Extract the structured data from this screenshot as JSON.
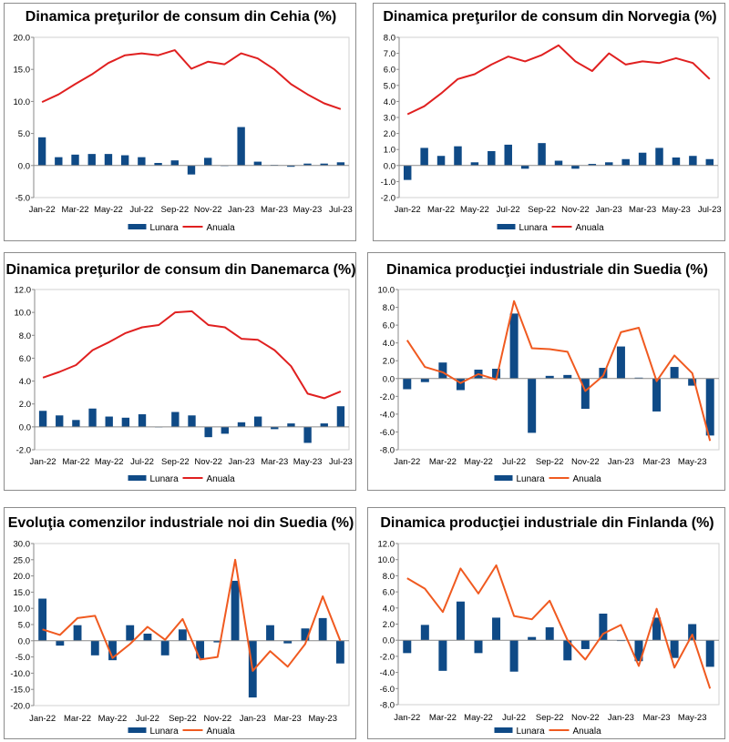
{
  "chart_data": [
    {
      "type": "bar+line",
      "title": "Dinamica preţurilor de consum din Cehia (%)",
      "categories": [
        "Jan-22",
        "Feb-22",
        "Mar-22",
        "Apr-22",
        "May-22",
        "Jun-22",
        "Jul-22",
        "Aug-22",
        "Sep-22",
        "Oct-22",
        "Nov-22",
        "Dec-22",
        "Jan-23",
        "Feb-23",
        "Mar-23",
        "Apr-23",
        "May-23",
        "Jun-23",
        "Jul-23"
      ],
      "x_tick_labels": [
        "Jan-22",
        "Mar-22",
        "May-22",
        "Jul-22",
        "Sep-22",
        "Nov-22",
        "Jan-23",
        "Mar-23",
        "May-23",
        "Jul-23"
      ],
      "ylim": [
        -5,
        20
      ],
      "yticks": [
        -5,
        0,
        5,
        10,
        15,
        20
      ],
      "ytick_labels": [
        "-5.0",
        "0.0",
        "5.0",
        "10.0",
        "15.0",
        "20.0"
      ],
      "series": [
        {
          "name": "Lunara",
          "kind": "bar",
          "color": "#0f4a86",
          "values": [
            4.4,
            1.3,
            1.7,
            1.8,
            1.8,
            1.6,
            1.3,
            0.4,
            0.8,
            -1.4,
            1.2,
            0.0,
            6.0,
            0.6,
            0.1,
            -0.2,
            0.3,
            0.3,
            0.5
          ]
        },
        {
          "name": "Anuala",
          "kind": "line",
          "color": "#e02020",
          "values": [
            9.9,
            11.1,
            12.7,
            14.2,
            16.0,
            17.2,
            17.5,
            17.2,
            18.0,
            15.1,
            16.2,
            15.8,
            17.5,
            16.7,
            15.0,
            12.7,
            11.1,
            9.7,
            8.8
          ]
        }
      ],
      "legend": "bottom",
      "grid": false
    },
    {
      "type": "bar+line",
      "title": "Dinamica preţurilor de consum din Norvegia (%)",
      "categories": [
        "Jan-22",
        "Feb-22",
        "Mar-22",
        "Apr-22",
        "May-22",
        "Jun-22",
        "Jul-22",
        "Aug-22",
        "Sep-22",
        "Oct-22",
        "Nov-22",
        "Dec-22",
        "Jan-23",
        "Feb-23",
        "Mar-23",
        "Apr-23",
        "May-23",
        "Jun-23",
        "Jul-23"
      ],
      "x_tick_labels": [
        "Jan-22",
        "Mar-22",
        "May-22",
        "Jul-22",
        "Sep-22",
        "Nov-22",
        "Jan-23",
        "Mar-23",
        "May-23",
        "Jul-23"
      ],
      "ylim": [
        -2,
        8
      ],
      "yticks": [
        -2,
        -1,
        0,
        1,
        2,
        3,
        4,
        5,
        6,
        7,
        8
      ],
      "ytick_labels": [
        "-2.0",
        "-1.0",
        "0.0",
        "1.0",
        "2.0",
        "3.0",
        "4.0",
        "5.0",
        "6.0",
        "7.0",
        "8.0"
      ],
      "series": [
        {
          "name": "Lunara",
          "kind": "bar",
          "color": "#0f4a86",
          "values": [
            -0.9,
            1.1,
            0.6,
            1.2,
            0.2,
            0.9,
            1.3,
            -0.2,
            1.4,
            0.3,
            -0.2,
            0.1,
            0.2,
            0.4,
            0.8,
            1.1,
            0.5,
            0.6,
            0.4
          ]
        },
        {
          "name": "Anuala",
          "kind": "line",
          "color": "#e02020",
          "values": [
            3.2,
            3.7,
            4.5,
            5.4,
            5.7,
            6.3,
            6.8,
            6.5,
            6.9,
            7.5,
            6.5,
            5.9,
            7.0,
            6.3,
            6.5,
            6.4,
            6.7,
            6.4,
            5.4
          ]
        }
      ],
      "legend": "bottom",
      "grid": false
    },
    {
      "type": "bar+line",
      "title": "Dinamica preţurilor de consum din Danemarca (%)",
      "categories": [
        "Jan-22",
        "Feb-22",
        "Mar-22",
        "Apr-22",
        "May-22",
        "Jun-22",
        "Jul-22",
        "Aug-22",
        "Sep-22",
        "Oct-22",
        "Nov-22",
        "Dec-22",
        "Jan-23",
        "Feb-23",
        "Mar-23",
        "Apr-23",
        "May-23",
        "Jun-23",
        "Jul-23"
      ],
      "x_tick_labels": [
        "Jan-22",
        "Mar-22",
        "May-22",
        "Jul-22",
        "Sep-22",
        "Nov-22",
        "Jan-23",
        "Mar-23",
        "May-23",
        "Jul-23"
      ],
      "ylim": [
        -2,
        12
      ],
      "yticks": [
        -2,
        0,
        2,
        4,
        6,
        8,
        10,
        12
      ],
      "ytick_labels": [
        "-2.0",
        "0.0",
        "2.0",
        "4.0",
        "6.0",
        "8.0",
        "10.0",
        "12.0"
      ],
      "series": [
        {
          "name": "Lunara",
          "kind": "bar",
          "color": "#0f4a86",
          "values": [
            1.4,
            1.0,
            0.6,
            1.6,
            0.9,
            0.8,
            1.1,
            0.0,
            1.3,
            1.0,
            -0.9,
            -0.6,
            0.4,
            0.9,
            -0.2,
            0.3,
            -1.4,
            0.3,
            1.8
          ]
        },
        {
          "name": "Anuala",
          "kind": "line",
          "color": "#e02020",
          "values": [
            4.3,
            4.8,
            5.4,
            6.7,
            7.4,
            8.2,
            8.7,
            8.9,
            10.0,
            10.1,
            8.9,
            8.7,
            7.7,
            7.6,
            6.7,
            5.3,
            2.9,
            2.5,
            3.1
          ]
        }
      ],
      "legend": "bottom",
      "grid": false
    },
    {
      "type": "bar+line",
      "title": "Dinamica producţiei industriale din Suedia (%)",
      "categories": [
        "Jan-22",
        "Feb-22",
        "Mar-22",
        "Apr-22",
        "May-22",
        "Jun-22",
        "Jul-22",
        "Aug-22",
        "Sep-22",
        "Oct-22",
        "Nov-22",
        "Dec-22",
        "Jan-23",
        "Feb-23",
        "Mar-23",
        "Apr-23",
        "May-23",
        "Jun-23"
      ],
      "x_tick_labels": [
        "Jan-22",
        "Mar-22",
        "May-22",
        "Jul-22",
        "Sep-22",
        "Nov-22",
        "Jan-23",
        "Mar-23",
        "May-23"
      ],
      "ylim": [
        -8,
        10
      ],
      "yticks": [
        -8,
        -6,
        -4,
        -2,
        0,
        2,
        4,
        6,
        8,
        10
      ],
      "ytick_labels": [
        "-8.0",
        "-6.0",
        "-4.0",
        "-2.0",
        "0.0",
        "2.0",
        "4.0",
        "6.0",
        "8.0",
        "10.0"
      ],
      "series": [
        {
          "name": "Lunara",
          "kind": "bar",
          "color": "#0f4a86",
          "values": [
            -1.2,
            -0.4,
            1.8,
            -1.3,
            1.0,
            1.1,
            7.3,
            -6.1,
            0.3,
            0.4,
            -3.4,
            1.2,
            3.6,
            0.1,
            -3.7,
            1.3,
            -0.8,
            -6.4
          ]
        },
        {
          "name": "Anuala",
          "kind": "line",
          "color": "#f05a20",
          "values": [
            4.3,
            1.3,
            0.7,
            -0.5,
            0.5,
            -0.1,
            8.7,
            3.4,
            3.3,
            3.0,
            -1.4,
            0.3,
            5.2,
            5.7,
            -0.3,
            2.6,
            0.6,
            -7.0
          ]
        }
      ],
      "legend": "bottom",
      "grid": false
    },
    {
      "type": "bar+line",
      "title": "Evoluţia comenzilor industriale noi din Suedia (%)",
      "categories": [
        "Jan-22",
        "Feb-22",
        "Mar-22",
        "Apr-22",
        "May-22",
        "Jun-22",
        "Jul-22",
        "Aug-22",
        "Sep-22",
        "Oct-22",
        "Nov-22",
        "Dec-22",
        "Jan-23",
        "Feb-23",
        "Mar-23",
        "Apr-23",
        "May-23",
        "Jun-23"
      ],
      "x_tick_labels": [
        "Jan-22",
        "Mar-22",
        "May-22",
        "Jul-22",
        "Sep-22",
        "Nov-22",
        "Jan-23",
        "Mar-23",
        "May-23"
      ],
      "ylim": [
        -20,
        30
      ],
      "yticks": [
        -20,
        -15,
        -10,
        -5,
        0,
        5,
        10,
        15,
        20,
        25,
        30
      ],
      "ytick_labels": [
        "-20.0",
        "-15.0",
        "-10.0",
        "-5.0",
        "0.0",
        "5.0",
        "10.0",
        "15.0",
        "20.0",
        "25.0",
        "30.0"
      ],
      "series": [
        {
          "name": "Lunara",
          "kind": "bar",
          "color": "#0f4a86",
          "values": [
            13.0,
            -1.5,
            4.8,
            -4.5,
            -6.0,
            4.8,
            2.2,
            -4.5,
            3.5,
            -5.5,
            -0.5,
            18.5,
            -17.5,
            4.8,
            -0.8,
            3.8,
            7.0,
            -7.0
          ]
        },
        {
          "name": "Anuala",
          "kind": "line",
          "color": "#f05a20",
          "values": [
            3.5,
            1.8,
            7.0,
            7.7,
            -5.3,
            -1.0,
            4.3,
            0.3,
            6.7,
            -5.8,
            -5.0,
            25.0,
            -9.3,
            -3.2,
            -8.0,
            -1.0,
            13.7,
            0.0
          ]
        }
      ],
      "legend": "bottom",
      "grid": false
    },
    {
      "type": "bar+line",
      "title": "Dinamica producţiei industriale din Finlanda (%)",
      "categories": [
        "Jan-22",
        "Feb-22",
        "Mar-22",
        "Apr-22",
        "May-22",
        "Jun-22",
        "Jul-22",
        "Aug-22",
        "Sep-22",
        "Oct-22",
        "Nov-22",
        "Dec-22",
        "Jan-23",
        "Feb-23",
        "Mar-23",
        "Apr-23",
        "May-23",
        "Jun-23"
      ],
      "x_tick_labels": [
        "Jan-22",
        "Mar-22",
        "May-22",
        "Jul-22",
        "Sep-22",
        "Nov-22",
        "Jan-23",
        "Mar-23",
        "May-23"
      ],
      "ylim": [
        -8,
        12
      ],
      "yticks": [
        -8,
        -6,
        -4,
        -2,
        0,
        2,
        4,
        6,
        8,
        10,
        12
      ],
      "ytick_labels": [
        "-8.0",
        "-6.0",
        "-4.0",
        "-2.0",
        "0.0",
        "2.0",
        "4.0",
        "6.0",
        "8.0",
        "10.0",
        "12.0"
      ],
      "series": [
        {
          "name": "Lunara",
          "kind": "bar",
          "color": "#0f4a86",
          "values": [
            -1.6,
            1.9,
            -3.8,
            4.8,
            -1.6,
            2.8,
            -3.9,
            0.4,
            1.6,
            -2.5,
            -1.1,
            3.3,
            -0.1,
            -2.6,
            2.8,
            -2.2,
            2.0,
            -3.3
          ]
        },
        {
          "name": "Anuala",
          "kind": "line",
          "color": "#f05a20",
          "values": [
            7.7,
            6.4,
            3.5,
            8.9,
            5.8,
            9.3,
            3.0,
            2.6,
            4.9,
            0.0,
            -2.4,
            0.8,
            1.9,
            -3.2,
            3.9,
            -3.4,
            0.7,
            -6.0
          ]
        }
      ],
      "legend": "bottom",
      "grid": false
    }
  ]
}
